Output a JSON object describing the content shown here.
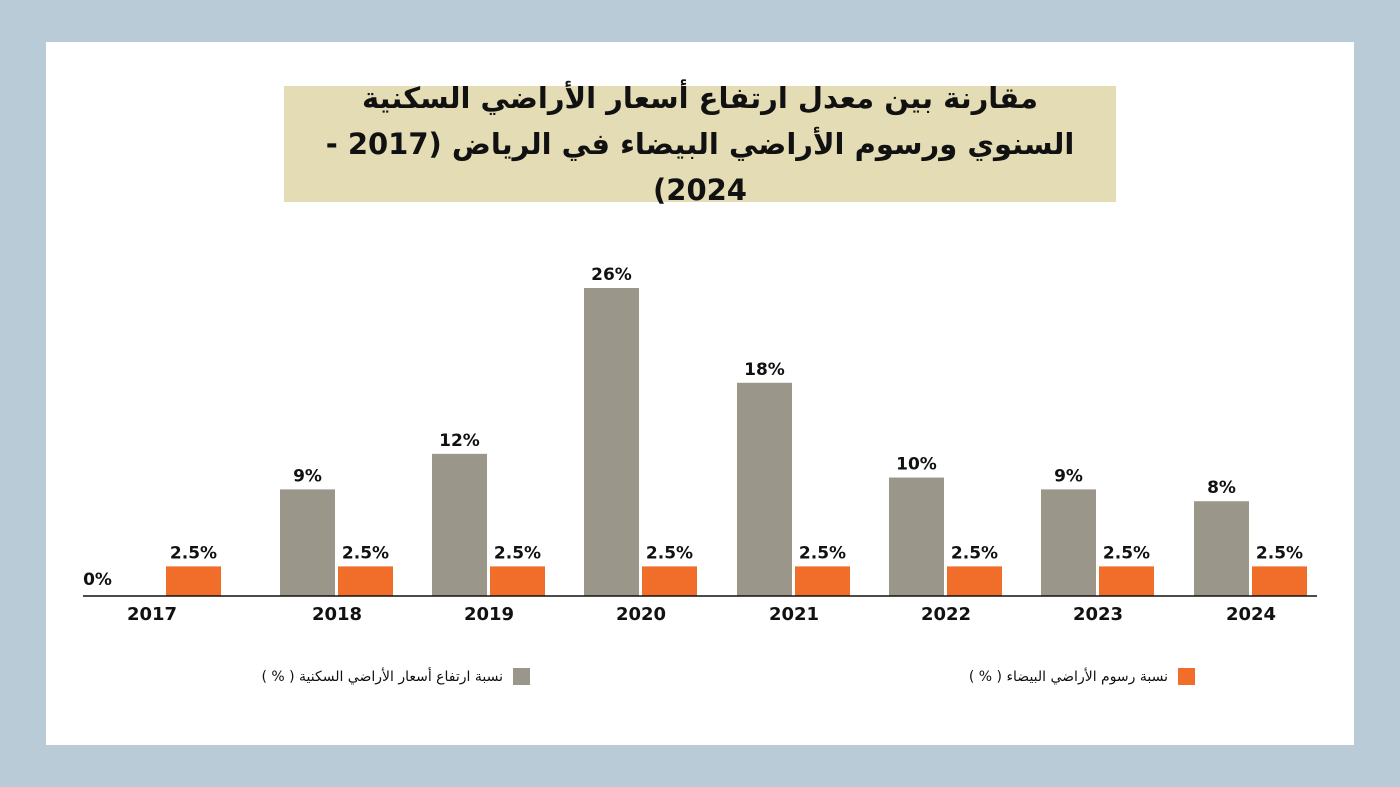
{
  "title": "مقارنة بين معدل ارتفاع أسعار الأراضي السكنية السنوي ورسوم الأراضي البيضاء في الرياض (2017 - 2024)",
  "colors": {
    "background": "#b9cbd7",
    "card": "#ffffff",
    "title_box": "#e3dcb4",
    "land_price": "#9a978a",
    "white_land_fee": "#f06e2a",
    "axis": "#111111"
  },
  "chart_data": {
    "type": "bar",
    "categories": [
      "2017",
      "2018",
      "2019",
      "2020",
      "2021",
      "2022",
      "2023",
      "2024"
    ],
    "series": [
      {
        "name": "نسبة ارتفاع أسعار الأراضي السكنية ( % )",
        "values": [
          0,
          9,
          12,
          26,
          18,
          10,
          9,
          8
        ],
        "labels": [
          "0%",
          "9%",
          "12%",
          "26%",
          "18%",
          "10%",
          "9%",
          "8%"
        ],
        "color": "#9a978a"
      },
      {
        "name": "نسبة رسوم الأراضي البيضاء ( % )",
        "values": [
          2.5,
          2.5,
          2.5,
          2.5,
          2.5,
          2.5,
          2.5,
          2.5
        ],
        "labels": [
          "2.5%",
          "2.5%",
          "2.5%",
          "2.5%",
          "2.5%",
          "2.5%",
          "2.5%",
          "2.5%"
        ],
        "color": "#f06e2a"
      }
    ],
    "ylim": [
      0,
      26
    ],
    "grid": false,
    "legend": "bottom"
  }
}
